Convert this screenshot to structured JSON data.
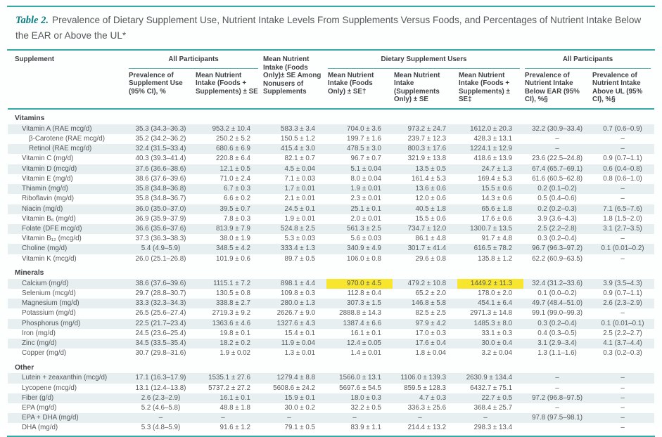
{
  "title": {
    "label": "Table 2.",
    "text": "Prevalence of Dietary Supplement Use, Nutrient Intake Levels From Supplements Versus Foods, and Percentages of Nutrient Intake Below the EAR or Above the UL*"
  },
  "colors": {
    "accent_teal": "#35a9a3",
    "title_label_teal": "#0d7e81",
    "row_stripe": "#e7eff0",
    "highlight_yellow": "#f7e52e",
    "header_text": "#3e4244",
    "body_text": "#55585a"
  },
  "header": {
    "supplement": "Supplement",
    "groups": [
      {
        "label": "All Participants",
        "span": 2
      },
      {
        "label": "Dietary Supplement Users",
        "span": 3
      },
      {
        "label": "All Participants",
        "span": 2
      }
    ],
    "columns": [
      "Prevalence of Supplement Use (95% CI), %",
      "Mean Nutrient Intake (Foods + Supplements) ± SE",
      "Mean Nutrient Intake (Foods Only)± SE Among Nonusers of Supplements",
      "Mean Nutrient Intake (Foods Only) ± SE†",
      "Mean Nutrient Intake (Supplements Only) ± SE",
      "Mean Nutrient Intake (Foods + Supplements) ± SE‡",
      "Prevalence of Nutrient Intake Below EAR (95% CI), %§",
      "Prevalence of Nutrient Intake Above UL (95% CI), %§"
    ]
  },
  "sections": [
    {
      "name": "Vitamins",
      "rows": [
        {
          "label": "Vitamin A (RAE mcg/d)",
          "indent": 1,
          "values": [
            "35.3 (34.3–36.3)",
            "953.2 ± 10.4",
            "583.3 ± 3.4",
            "704.0 ± 3.6",
            "973.2 ± 24.7",
            "1612.0 ± 20.3",
            "32.2 (30.9–33.4)",
            "0.7 (0.6–0.9)"
          ]
        },
        {
          "label": "β-Carotene (RAE mcg/d)",
          "indent": 2,
          "values": [
            "35.2 (34.2–36.2)",
            "250.2 ± 5.2",
            "150.5 ± 1.2",
            "199.7 ± 1.6",
            "239.7 ± 12.3",
            "428.3 ± 13.1",
            "–",
            "–"
          ]
        },
        {
          "label": "Retinol (RAE mcg/d)",
          "indent": 2,
          "values": [
            "32.4 (31.5–33.4)",
            "680.6 ± 6.9",
            "415.4 ± 3.0",
            "478.5 ± 3.0",
            "800.3 ± 17.6",
            "1224.1 ± 12.9",
            "–",
            "–"
          ]
        },
        {
          "label": "Vitamin C (mg/d)",
          "indent": 1,
          "values": [
            "40.3 (39.3–41.4)",
            "220.8 ± 6.4",
            "82.1 ± 0.7",
            "96.7 ± 0.7",
            "321.9 ± 13.8",
            "418.6 ± 13.9",
            "23.6 (22.5–24.8)",
            "0.9 (0.7–1.1)"
          ]
        },
        {
          "label": "Vitamin D (mcg/d)",
          "indent": 1,
          "values": [
            "37.6 (36.6–38.6)",
            "12.1 ± 0.5",
            "4.5 ± 0.04",
            "5.1 ± 0.04",
            "13.5 ± 0.5",
            "24.7 ± 1.3",
            "67.4 (65.7–69.1)",
            "0.6 (0.4–0.8)"
          ]
        },
        {
          "label": "Vitamin E (mg/d)",
          "indent": 1,
          "values": [
            "38.6 (37.6–39.6)",
            "71.0 ± 2.4",
            "7.1 ± 0.03",
            "8.0 ± 0.04",
            "161.4 ± 5.3",
            "169.4 ± 5.3",
            "61.6 (60.5–62.8)",
            "0.8 (0.6–1.0)"
          ]
        },
        {
          "label": "Thiamin (mg/d)",
          "indent": 1,
          "values": [
            "35.8 (34.8–36.8)",
            "6.7 ± 0.3",
            "1.7 ± 0.01",
            "1.9 ± 0.01",
            "13.6 ± 0.6",
            "15.5 ± 0.6",
            "0.2 (0.1–0.2)",
            "–"
          ]
        },
        {
          "label": "Riboflavin (mg/d)",
          "indent": 1,
          "values": [
            "35.8 (34.8–36.7)",
            "6.6 ± 0.2",
            "2.1 ± 0.01",
            "2.3 ± 0.01",
            "12.0 ± 0.6",
            "14.3 ± 0.6",
            "0.5 (0.4–0.6)",
            "–"
          ]
        },
        {
          "label": "Niacin (mg/d)",
          "indent": 1,
          "values": [
            "36.0 (35.0–37.0)",
            "39.5 ± 0.7",
            "24.5 ± 0.1",
            "25.1 ± 0.1",
            "40.5 ± 1.8",
            "65.6 ± 1.8",
            "0.2 (0.2–0.3)",
            "7.1 (6.5–7.6)"
          ]
        },
        {
          "label": "Vitamin B₆ (mg/d)",
          "indent": 1,
          "values": [
            "36.9 (35.9–37.9)",
            "7.8 ± 0.3",
            "1.9 ± 0.01",
            "2.0 ± 0.01",
            "15.5 ± 0.6",
            "17.6 ± 0.6",
            "3.9 (3.6–4.3)",
            "1.8 (1.5–2.0)"
          ]
        },
        {
          "label": "Folate (DFE mcg/d)",
          "indent": 1,
          "values": [
            "36.6 (35.6–37.6)",
            "813.9 ± 7.9",
            "524.8 ± 2.5",
            "561.3 ± 2.5",
            "734.7 ± 12.0",
            "1300.7 ± 13.5",
            "2.5 (2.2–2.8)",
            "3.1 (2.7–3.5)"
          ]
        },
        {
          "label": "Vitamin B₁₂ (mcg/d)",
          "indent": 1,
          "values": [
            "37.3 (36.3–38.3)",
            "38.0 ± 1.9",
            "5.3 ± 0.03",
            "5.6 ± 0.03",
            "86.1 ± 4.8",
            "91.7 ± 4.8",
            "0.3 (0.2–0.4)",
            "–"
          ]
        },
        {
          "label": "Choline (mg/d)",
          "indent": 1,
          "values": [
            "5.4 (4.9–5.9)",
            "348.5 ± 4.2",
            "333.4 ± 1.3",
            "340.9 ± 4.9",
            "301.7 ± 41.4",
            "616.5 ± 78.2",
            "96.7 (96.3–97.2)",
            "0.1 (0.01–0.2)"
          ]
        },
        {
          "label": "Vitamin K (mcg/d)",
          "indent": 1,
          "values": [
            "26.0 (25.1–26.8)",
            "101.9 ± 0.6",
            "89.7 ± 0.5",
            "106.0 ± 0.8",
            "29.6 ± 0.8",
            "135.8 ± 1.2",
            "62.2 (60.9–63.5)",
            "–"
          ]
        }
      ]
    },
    {
      "name": "Minerals",
      "rows": [
        {
          "label": "Calcium (mg/d)",
          "indent": 1,
          "highlights": [
            3,
            5
          ],
          "values": [
            "38.6 (37.6–39.6)",
            "1115.1 ± 7.2",
            "898.1 ± 4.4",
            "970.0 ± 4.5",
            "479.2 ± 10.8",
            "1449.2 ± 11.3",
            "32.4 (31.2–33.6)",
            "3.9 (3.5–4.3)"
          ]
        },
        {
          "label": "Selenium (mcg/d)",
          "indent": 1,
          "values": [
            "29.7 (28.8–30.7)",
            "130.5 ± 0.8",
            "109.8 ± 0.3",
            "112.8 ± 0.4",
            "65.2 ± 2.0",
            "178.0 ± 2.0",
            "0.1 (0.0–0.2)",
            "0.9 (0.7–1.1)"
          ]
        },
        {
          "label": "Magnesium (mg/d)",
          "indent": 1,
          "values": [
            "33.3 (32.3–34.3)",
            "338.8 ± 2.7",
            "280.0 ± 1.3",
            "307.3 ± 1.5",
            "146.8 ± 5.8",
            "454.1 ± 6.4",
            "49.7 (48.4–51.0)",
            "2.6 (2.3–2.9)"
          ]
        },
        {
          "label": "Potassium (mg/d)",
          "indent": 1,
          "values": [
            "26.5 (25.6–27.4)",
            "2719.3 ± 9.2",
            "2626.7 ± 9.0",
            "2888.8 ± 14.3",
            "82.5 ± 2.5",
            "2971.3 ± 14.8",
            "99.1 (99.0–99.3)",
            "–"
          ]
        },
        {
          "label": "Phosphorus (mg/d)",
          "indent": 1,
          "values": [
            "22.5 (21.7–23.4)",
            "1363.6 ± 4.6",
            "1327.6 ± 4.3",
            "1387.4 ± 6.6",
            "97.9 ± 4.2",
            "1485.3 ± 8.0",
            "0.3 (0.2–0.4)",
            "0.1 (0.01–0.1)"
          ]
        },
        {
          "label": "Iron (mg/d)",
          "indent": 1,
          "values": [
            "24.5 (23.6–25.4)",
            "19.8 ± 0.1",
            "15.4 ± 0.1",
            "16.1 ± 0.1",
            "17.0 ± 0.3",
            "33.1 ± 0.3",
            "0.4 (0.3–0.5)",
            "2.5 (2.2–2.7)"
          ]
        },
        {
          "label": "Zinc (mg/d)",
          "indent": 1,
          "values": [
            "34.5 (33.5–35.4)",
            "18.2 ± 0.2",
            "11.9 ± 0.04",
            "12.4 ± 0.05",
            "17.6 ± 0.4",
            "30.0 ± 0.4",
            "3.1 (2.9–3.4)",
            "4.1 (3.7–4.4)"
          ]
        },
        {
          "label": "Copper (mg/d)",
          "indent": 1,
          "values": [
            "30.7 (29.8–31.6)",
            "1.9 ± 0.02",
            "1.3 ± 0.01",
            "1.4 ± 0.01",
            "1.8 ± 0.04",
            "3.2 ± 0.04",
            "1.3 (1.1–1.6)",
            "0.3 (0.2–0.3)"
          ]
        }
      ]
    },
    {
      "name": "Other",
      "rows": [
        {
          "label": "Lutein + zeaxanthin (mcg/d)",
          "indent": 1,
          "values": [
            "17.1 (16.3–17.9)",
            "1535.1 ± 27.6",
            "1279.4 ± 8.8",
            "1566.0 ± 13.1",
            "1106.0 ± 139.3",
            "2630.9 ± 134.4",
            "–",
            "–"
          ]
        },
        {
          "label": "Lycopene (mcg/d)",
          "indent": 1,
          "values": [
            "13.1 (12.4–13.8)",
            "5737.2 ± 27.2",
            "5608.6 ± 24.2",
            "5697.6 ± 54.5",
            "859.5 ± 128.3",
            "6432.7 ± 75.1",
            "–",
            "–"
          ]
        },
        {
          "label": "Fiber (g/d)",
          "indent": 1,
          "values": [
            "2.6 (2.3–2.9)",
            "16.1 ± 0.1",
            "15.9 ± 0.1",
            "18.0 ± 0.3",
            "4.7 ± 0.3",
            "22.7 ± 0.5",
            "97.2 (96.8–97.5)",
            "–"
          ]
        },
        {
          "label": "EPA (mg/d)",
          "indent": 1,
          "values": [
            "5.2 (4.6–5.8)",
            "48.8 ± 1.8",
            "30.0 ± 0.2",
            "32.2 ± 0.5",
            "336.3 ± 25.6",
            "368.4 ± 25.7",
            "–",
            "–"
          ]
        },
        {
          "label": "EPA + DHA (mg/d)",
          "indent": 1,
          "values": [
            "–",
            "–",
            "–",
            "–",
            "–",
            "–",
            "97.8 (97.5–98.1)",
            "–"
          ]
        },
        {
          "label": "DHA (mg/d)",
          "indent": 1,
          "values": [
            "5.3 (4.8–5.9)",
            "91.6 ± 1.2",
            "79.1 ± 0.5",
            "83.9 ± 1.1",
            "214.4 ± 13.2",
            "298.3 ± 13.4",
            "",
            "–"
          ]
        }
      ]
    }
  ]
}
